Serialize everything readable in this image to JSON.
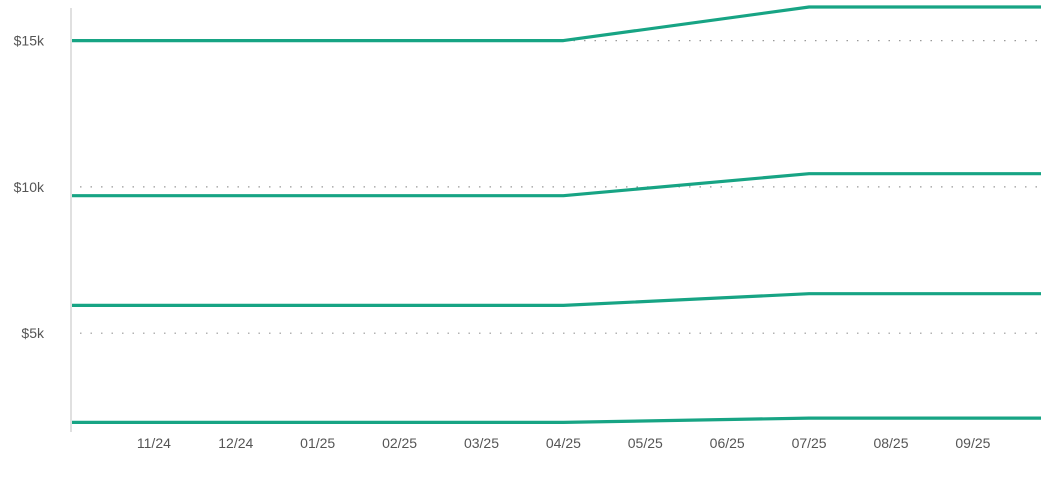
{
  "chart_data": {
    "type": "line",
    "title": "",
    "xlabel": "",
    "ylabel": "",
    "x_tick_labels": [
      "11/24",
      "12/24",
      "01/25",
      "02/25",
      "03/25",
      "04/25",
      "05/25",
      "06/25",
      "07/25",
      "08/25",
      "09/25"
    ],
    "x_range": [
      "10/24",
      "10/25"
    ],
    "y_tick_values": [
      5000,
      10000,
      15000
    ],
    "y_tick_labels": [
      "$5k",
      "$10k",
      "$15k"
    ],
    "ylim": [
      0,
      16200
    ],
    "grid": true,
    "grid_style": "dotted horizontal",
    "legend": "none",
    "line_color": "#17a484",
    "series": [
      {
        "x": [
          "10/24",
          "04/25",
          "07/25",
          "10/25"
        ],
        "values": [
          15000,
          15000,
          16150,
          16150
        ]
      },
      {
        "x": [
          "10/24",
          "04/25",
          "07/25",
          "10/25"
        ],
        "values": [
          9700,
          9700,
          10450,
          10450
        ]
      },
      {
        "x": [
          "10/24",
          "04/25",
          "07/25",
          "10/25"
        ],
        "values": [
          5950,
          5950,
          6350,
          6350
        ]
      },
      {
        "x": [
          "10/24",
          "04/25",
          "07/25",
          "10/25"
        ],
        "values": [
          1950,
          1950,
          2100,
          2100
        ]
      }
    ]
  }
}
